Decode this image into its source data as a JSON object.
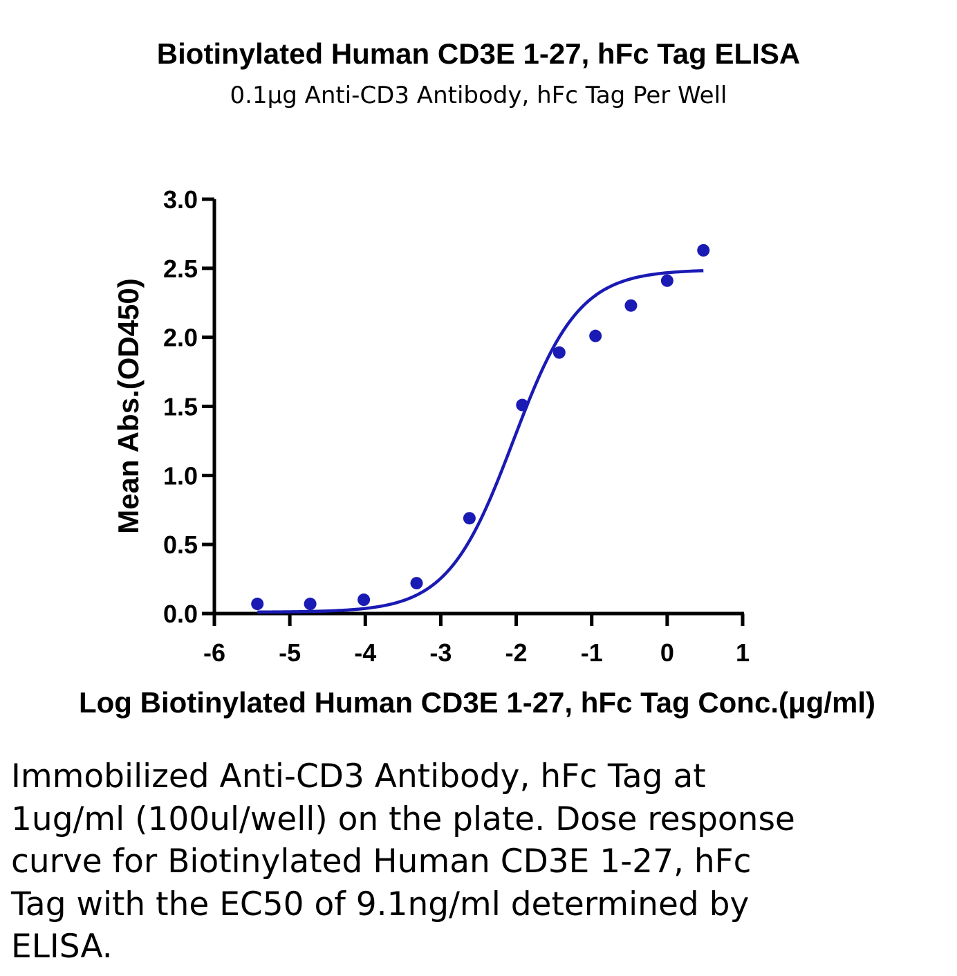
{
  "colors": {
    "series": "#1a1ab4",
    "axis": "#000000"
  },
  "chart_data": {
    "type": "scatter",
    "title": "Biotinylated Human CD3E 1-27, hFc Tag ELISA",
    "subtitle": "0.1μg Anti-CD3 Antibody, hFc Tag Per Well",
    "xlabel": "Log Biotinylated Human CD3E 1-27, hFc Tag Conc.(μg/ml)",
    "ylabel": "Mean Abs.(OD450)",
    "xlim": [
      -6,
      1
    ],
    "ylim": [
      0,
      3.0
    ],
    "xticks": [
      -6,
      -5,
      -4,
      -3,
      -2,
      -1,
      0,
      1
    ],
    "xtick_labels": [
      "-6",
      "-5",
      "-4",
      "-3",
      "-2",
      "-1",
      "0",
      "1"
    ],
    "yticks": [
      0,
      0.5,
      1.0,
      1.5,
      2.0,
      2.5,
      3.0
    ],
    "ytick_labels": [
      "0.0",
      "0.5",
      "1.0",
      "1.5",
      "2.0",
      "2.5",
      "3.0"
    ],
    "grid": false,
    "series": [
      {
        "x": [
          -5.43,
          -4.73,
          -4.02,
          -3.32,
          -2.62,
          -1.92,
          -1.43,
          -0.95,
          -0.48,
          0.0,
          0.48
        ],
        "y": [
          0.07,
          0.07,
          0.1,
          0.22,
          0.69,
          1.51,
          1.89,
          2.01,
          2.23,
          2.41,
          2.63
        ]
      }
    ],
    "fit": {
      "model": "4PL",
      "bottom": 0.01,
      "top": 2.49,
      "log_ec50": -2.04,
      "hill": 1.0,
      "x_range": [
        -5.43,
        0.48
      ]
    }
  },
  "caption": "Immobilized Anti-CD3 Antibody, hFc Tag at 1ug/ml (100ul/well) on the plate. Dose response curve for Biotinylated Human CD3E 1-27, hFc Tag with the EC50 of 9.1ng/ml determined by ELISA."
}
